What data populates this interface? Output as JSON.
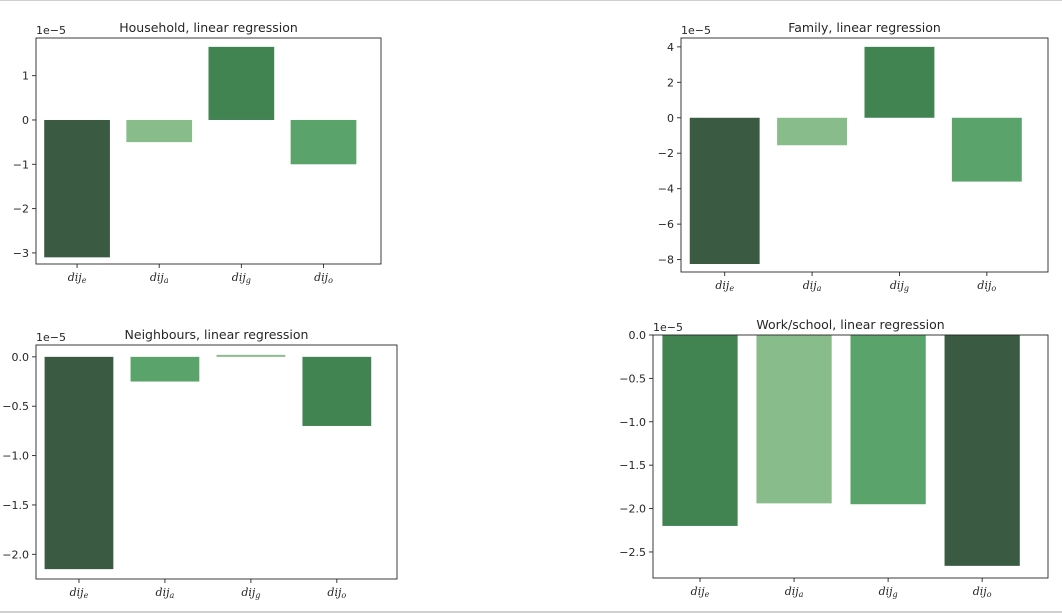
{
  "chart_data": [
    {
      "type": "bar",
      "title": "Household, linear regression",
      "offset_label": "1e−5",
      "categories": [
        "dij_e",
        "dij_a",
        "dij_g",
        "dij_o"
      ],
      "category_labels": [
        {
          "base": "dij",
          "sub": "e"
        },
        {
          "base": "dij",
          "sub": "a"
        },
        {
          "base": "dij",
          "sub": "g"
        },
        {
          "base": "dij",
          "sub": "o"
        }
      ],
      "values": [
        -3.1,
        -0.5,
        1.65,
        -1.0
      ],
      "bar_colors": [
        "#3a5a42",
        "#88bc8a",
        "#428352",
        "#5aa36a"
      ],
      "ylim": [
        -3.25,
        1.85
      ],
      "yticks": [
        -3,
        -2,
        -1,
        0,
        1
      ],
      "ytick_labels": [
        "−3",
        "−2",
        "−1",
        "0",
        "1"
      ],
      "xlabel": "",
      "ylabel": ""
    },
    {
      "type": "bar",
      "title": "Family, linear regression",
      "offset_label": "1e−5",
      "categories": [
        "dij_e",
        "dij_a",
        "dij_g",
        "dij_o"
      ],
      "category_labels": [
        {
          "base": "dij",
          "sub": "e"
        },
        {
          "base": "dij",
          "sub": "a"
        },
        {
          "base": "dij",
          "sub": "g"
        },
        {
          "base": "dij",
          "sub": "o"
        }
      ],
      "values": [
        -8.25,
        -1.55,
        4.0,
        -3.6
      ],
      "bar_colors": [
        "#3a5a42",
        "#88bc8a",
        "#428352",
        "#5aa36a"
      ],
      "ylim": [
        -8.7,
        4.5
      ],
      "yticks": [
        -8,
        -6,
        -4,
        -2,
        0,
        2,
        4
      ],
      "ytick_labels": [
        "−8",
        "−6",
        "−4",
        "−2",
        "0",
        "2",
        "4"
      ],
      "xlabel": "",
      "ylabel": ""
    },
    {
      "type": "bar",
      "title": "Neighbours, linear regression",
      "offset_label": "1e−5",
      "categories": [
        "dij_e",
        "dij_a",
        "dij_g",
        "dij_o"
      ],
      "category_labels": [
        {
          "base": "dij",
          "sub": "e"
        },
        {
          "base": "dij",
          "sub": "a"
        },
        {
          "base": "dij",
          "sub": "g"
        },
        {
          "base": "dij",
          "sub": "o"
        }
      ],
      "values": [
        -2.15,
        -0.25,
        0.02,
        -0.7
      ],
      "bar_colors": [
        "#3a5a42",
        "#5aa36a",
        "#88bc8a",
        "#428352"
      ],
      "ylim": [
        -2.25,
        0.12
      ],
      "yticks": [
        -2.0,
        -1.5,
        -1.0,
        -0.5,
        0.0
      ],
      "ytick_labels": [
        "−2.0",
        "−1.5",
        "−1.0",
        "−0.5",
        "0.0"
      ],
      "xlabel": "",
      "ylabel": ""
    },
    {
      "type": "bar",
      "title": "Work/school, linear regression",
      "offset_label": "1e−5",
      "categories": [
        "dij_e",
        "dij_a",
        "dij_g",
        "dij_o"
      ],
      "category_labels": [
        {
          "base": "dij",
          "sub": "e"
        },
        {
          "base": "dij",
          "sub": "a"
        },
        {
          "base": "dij",
          "sub": "g"
        },
        {
          "base": "dij",
          "sub": "o"
        }
      ],
      "values": [
        -2.2,
        -1.94,
        -1.95,
        -2.66
      ],
      "bar_colors": [
        "#428352",
        "#88bc8a",
        "#5aa36a",
        "#3a5a42"
      ],
      "ylim": [
        -2.8,
        0.0
      ],
      "yticks": [
        -2.5,
        -2.0,
        -1.5,
        -1.0,
        -0.5,
        0.0
      ],
      "ytick_labels": [
        "−2.5",
        "−2.0",
        "−1.5",
        "−1.0",
        "−0.5",
        "0.0"
      ],
      "xlabel": "",
      "ylabel": ""
    }
  ]
}
